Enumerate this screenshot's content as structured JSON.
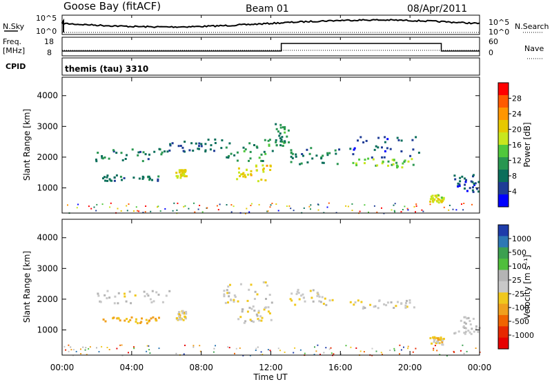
{
  "header": {
    "station": "Goose Bay (fitACF)",
    "beam": "Beam 01",
    "date": "08/Apr/2011"
  },
  "strips": {
    "nsky_label": "N.Sky",
    "nsky_ticks": [
      "10^5",
      "10^0"
    ],
    "nsearch_label": "N.Search",
    "nsearch_ticks": [
      "10^5",
      "10^0"
    ],
    "freq_label": "Freq.",
    "freq_unit": "[MHz]",
    "freq_ticks": [
      "18",
      "8"
    ],
    "nave_label": "Nave",
    "nave_ticks": [
      "60",
      "0"
    ],
    "cpid_label": "CPID",
    "cpid_value": "themis (tau) 3310"
  },
  "axes": {
    "ylabel": "Slant Range [km]",
    "yticks": [
      "4000",
      "3000",
      "2000",
      "1000"
    ],
    "xlabel": "Time UT",
    "xticks": [
      "00:00",
      "04:00",
      "08:00",
      "12:00",
      "16:00",
      "20:00",
      "00:00"
    ]
  },
  "power_colorbar": {
    "label": "Power [dB]",
    "ticks": [
      "28",
      "24",
      "20",
      "16",
      "12",
      "8",
      "4"
    ],
    "colors": [
      "#ff0000",
      "#ff5a00",
      "#ff9600",
      "#e6c800",
      "#c8e61e",
      "#50c83c",
      "#289650",
      "#0a6e5a",
      "#1e3c96",
      "#0000ff"
    ]
  },
  "velocity_colorbar": {
    "label": "Velocity [m s⁻¹]",
    "ticks": [
      "1000",
      "500",
      "100",
      "25",
      "-25",
      "-100",
      "-500",
      "-1000"
    ],
    "colors": [
      "#1e3caa",
      "#2d78b4",
      "#3ca050",
      "#50be3c",
      "#b4b4b4",
      "#c8c8c8",
      "#f0c81e",
      "#f0a01e",
      "#f06400",
      "#e62800",
      "#e60000"
    ]
  },
  "chart_data": [
    {
      "type": "heatmap",
      "title": "Power",
      "xlabel": "Time UT",
      "ylabel": "Slant Range [km]",
      "xlim": [
        "00:00",
        "24:00"
      ],
      "ylim": [
        180,
        4600
      ],
      "colorbar_label": "Power [dB]",
      "colorbar_range": [
        2,
        32
      ],
      "regions": [
        {
          "t": [
            1.9,
            6.2
          ],
          "r": [
            1900,
            2300
          ],
          "value": 10
        },
        {
          "t": [
            2.2,
            5.6
          ],
          "r": [
            1250,
            1450
          ],
          "value": 9
        },
        {
          "t": [
            6.5,
            7.1
          ],
          "r": [
            1350,
            1650
          ],
          "value": 20
        },
        {
          "t": [
            6.0,
            9.2
          ],
          "r": [
            2200,
            2650
          ],
          "value": 8
        },
        {
          "t": [
            9.2,
            12.1
          ],
          "r": [
            1900,
            2600
          ],
          "value": 12
        },
        {
          "t": [
            10.0,
            12.0
          ],
          "r": [
            1250,
            1800
          ],
          "value": 21
        },
        {
          "t": [
            12.2,
            13.0
          ],
          "r": [
            2400,
            3150
          ],
          "value": 12
        },
        {
          "t": [
            13.0,
            16.0
          ],
          "r": [
            1800,
            2350
          ],
          "value": 10
        },
        {
          "t": [
            16.5,
            20.2
          ],
          "r": [
            1700,
            2000
          ],
          "value": 16
        },
        {
          "t": [
            16.5,
            20.5
          ],
          "r": [
            2000,
            2700
          ],
          "value": 7
        },
        {
          "t": [
            21.1,
            21.9
          ],
          "r": [
            550,
            800
          ],
          "value": 19
        },
        {
          "t": [
            22.5,
            24.0
          ],
          "r": [
            900,
            1450
          ],
          "value": 7
        }
      ]
    },
    {
      "type": "heatmap",
      "title": "Velocity",
      "xlabel": "Time UT",
      "ylabel": "Slant Range [km]",
      "xlim": [
        "00:00",
        "24:00"
      ],
      "ylim": [
        180,
        4600
      ],
      "colorbar_label": "Velocity [m s⁻¹]",
      "colorbar_range": [
        -1000,
        1000
      ],
      "regions": [
        {
          "t": [
            1.9,
            6.2
          ],
          "r": [
            1900,
            2300
          ],
          "value": 0
        },
        {
          "t": [
            2.2,
            5.6
          ],
          "r": [
            1250,
            1450
          ],
          "value": -300
        },
        {
          "t": [
            6.5,
            7.1
          ],
          "r": [
            1350,
            1650
          ],
          "value": -150
        },
        {
          "t": [
            9.2,
            12.1
          ],
          "r": [
            1900,
            2600
          ],
          "value": 0
        },
        {
          "t": [
            10.0,
            12.0
          ],
          "r": [
            1250,
            1800
          ],
          "value": 0
        },
        {
          "t": [
            13.0,
            16.0
          ],
          "r": [
            1800,
            2350
          ],
          "value": 0
        },
        {
          "t": [
            16.5,
            20.2
          ],
          "r": [
            1700,
            2000
          ],
          "value": 0
        },
        {
          "t": [
            21.1,
            21.9
          ],
          "r": [
            550,
            800
          ],
          "value": -200
        },
        {
          "t": [
            22.5,
            24.0
          ],
          "r": [
            900,
            1450
          ],
          "value": 80
        }
      ]
    }
  ]
}
